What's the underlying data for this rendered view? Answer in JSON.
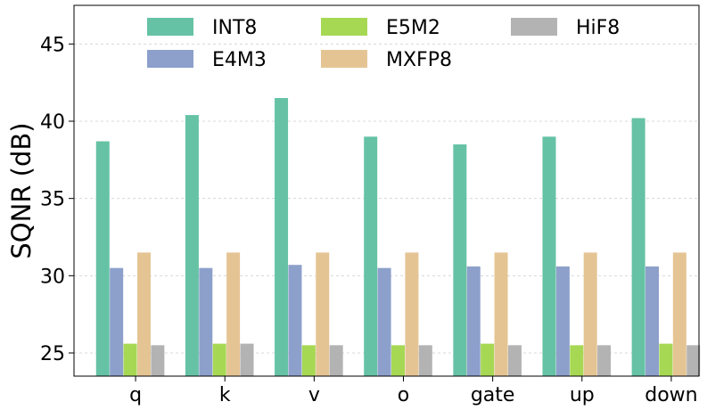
{
  "chart_data": {
    "type": "bar",
    "title": "",
    "xlabel": "",
    "ylabel": "SQNR (dB)",
    "ylim": [
      23.5,
      47.5
    ],
    "yticks": [
      25,
      30,
      35,
      40,
      45
    ],
    "grid": true,
    "legend_position": "top",
    "categories": [
      "q",
      "k",
      "v",
      "o",
      "gate",
      "up",
      "down"
    ],
    "series": [
      {
        "name": "INT8",
        "color": "#66c2a5",
        "values": [
          38.7,
          40.4,
          41.5,
          39.0,
          38.5,
          39.0,
          40.2
        ]
      },
      {
        "name": "E4M3",
        "color": "#8da0cb",
        "values": [
          30.5,
          30.5,
          30.7,
          30.5,
          30.6,
          30.6,
          30.6
        ]
      },
      {
        "name": "E5M2",
        "color": "#a6d854",
        "values": [
          25.6,
          25.6,
          25.5,
          25.5,
          25.6,
          25.5,
          25.6
        ]
      },
      {
        "name": "MXFP8",
        "color": "#e5c494",
        "values": [
          31.5,
          31.5,
          31.5,
          31.5,
          31.5,
          31.5,
          31.5
        ]
      },
      {
        "name": "HiF8",
        "color": "#b3b3b3",
        "values": [
          25.5,
          25.6,
          25.5,
          25.5,
          25.5,
          25.5,
          25.5
        ]
      }
    ]
  }
}
